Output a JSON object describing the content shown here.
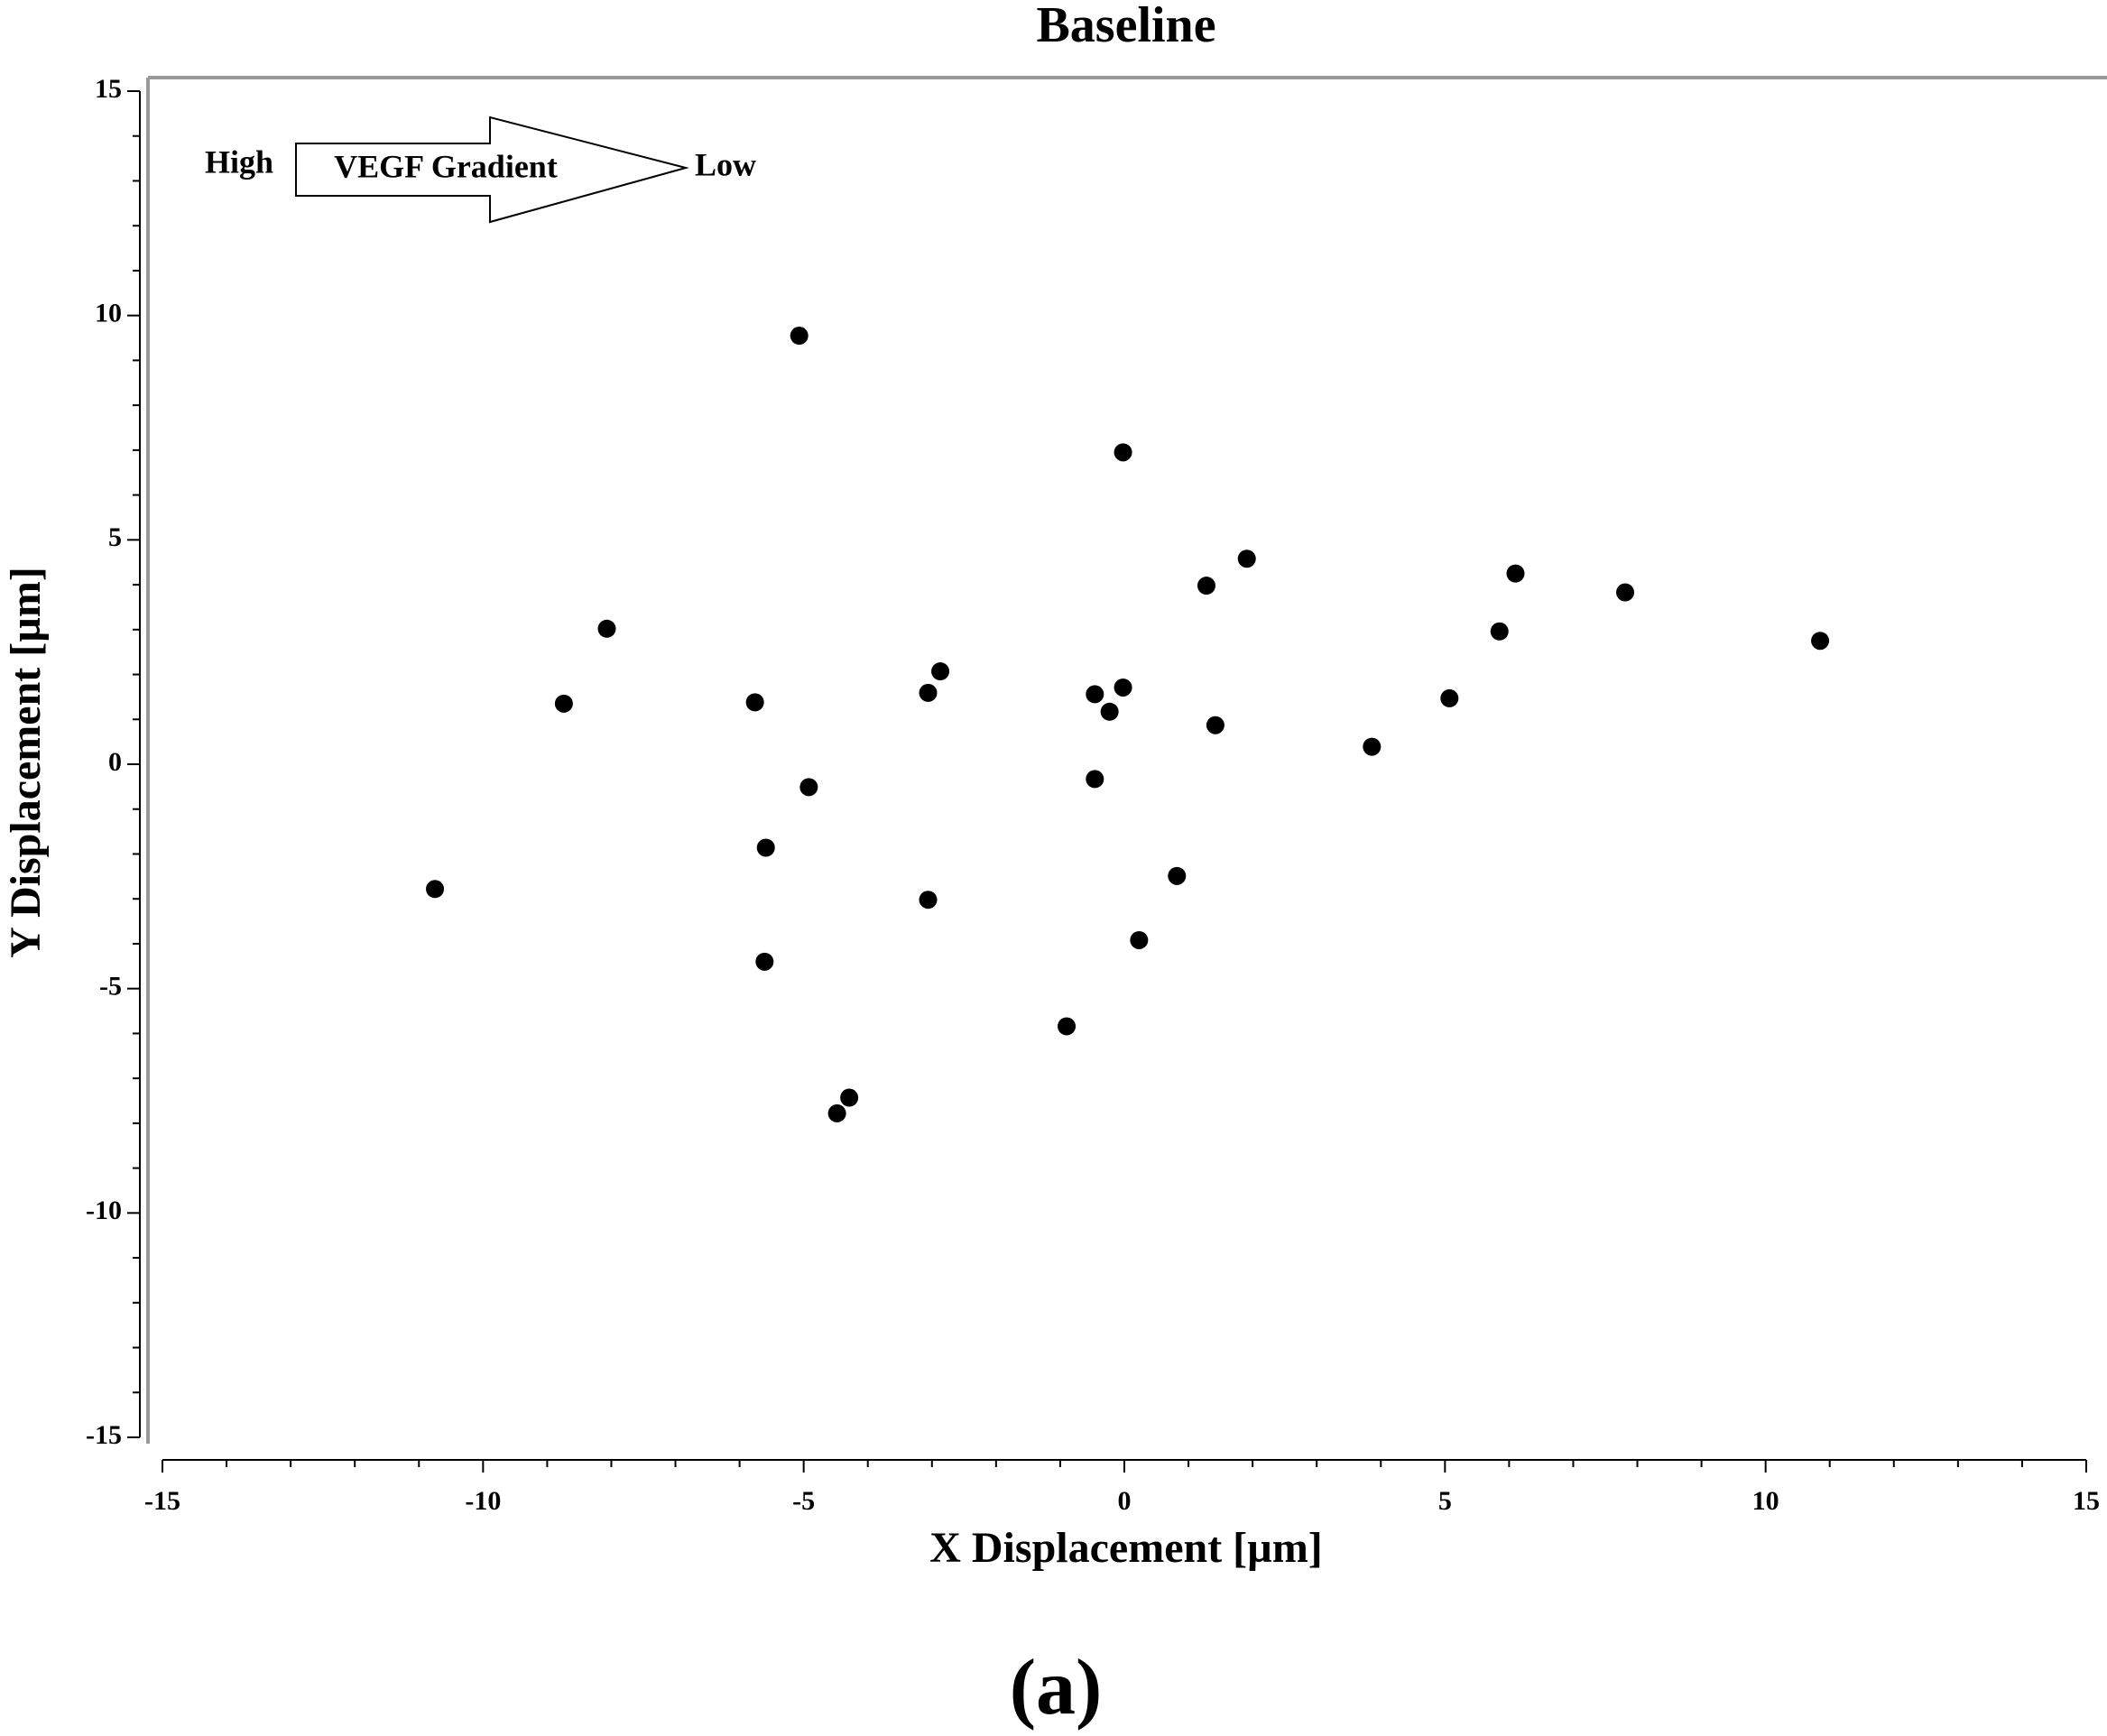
{
  "chart_data": {
    "type": "scatter",
    "title": "Baseline",
    "xlabel": "X Displacement [µm]",
    "ylabel": "Y Displacement [µm]",
    "panel_label": "(a)",
    "annotation": {
      "left": "High",
      "arrow": "VEGF Gradient",
      "right": "Low"
    },
    "color": "#000000",
    "x": [
      -5.07,
      -0.02,
      1.91,
      1.28,
      6.1,
      7.81,
      5.85,
      10.85,
      -8.07,
      -8.74,
      -5.76,
      -2.87,
      -3.06,
      -0.46,
      -0.02,
      -0.23,
      1.42,
      5.07,
      3.86,
      -4.92,
      -0.46,
      -10.75,
      -5.59,
      -3.06,
      0.82,
      0.23,
      -5.61,
      -0.9,
      -4.29,
      -4.48
    ],
    "y": [
      9.55,
      6.95,
      4.58,
      3.98,
      4.25,
      3.83,
      2.96,
      2.75,
      3.02,
      1.35,
      1.38,
      2.07,
      1.59,
      1.56,
      1.71,
      1.17,
      0.87,
      1.47,
      0.39,
      -0.51,
      -0.33,
      -2.78,
      -1.86,
      -3.02,
      -2.49,
      -3.92,
      -4.4,
      -5.84,
      -7.43,
      -7.78
    ],
    "xlim": [
      -15,
      15
    ],
    "ylim": [
      -15,
      15
    ],
    "xticks": [
      -15,
      -10,
      -5,
      0,
      5,
      10,
      15
    ],
    "yticks": [
      -15,
      -10,
      -5,
      0,
      5,
      10,
      15
    ],
    "x_minor_ticks": [
      -14,
      -13,
      -12,
      -11,
      -9,
      -8,
      -7,
      -6,
      -4,
      -3,
      -2,
      -1,
      1,
      2,
      3,
      4,
      6,
      7,
      8,
      9,
      11,
      12,
      13,
      14
    ],
    "y_minor_ticks": [
      -14,
      -13,
      -12,
      -11,
      -9,
      -8,
      -7,
      -6,
      -4,
      -3,
      -2,
      -1,
      1,
      2,
      3,
      4,
      6,
      7,
      8,
      9,
      11,
      12,
      13,
      14
    ]
  }
}
